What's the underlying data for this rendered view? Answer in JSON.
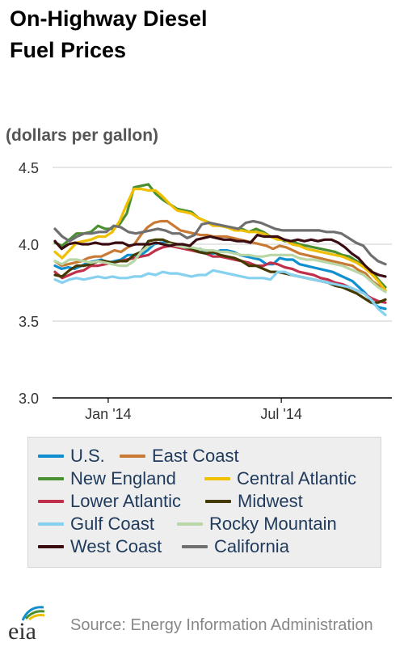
{
  "title_lines": [
    "On-Highway Diesel",
    "Fuel Prices"
  ],
  "units": "(dollars per gallon)",
  "source": "Source: Energy Information Administration",
  "logo_text": "eia",
  "chart_data": {
    "type": "line",
    "ylim": [
      3.0,
      4.5
    ],
    "y_ticks": [
      3.0,
      3.5,
      4.0,
      4.5
    ],
    "y_tick_labels": [
      "3.0",
      "3.5",
      "4.0",
      "4.5"
    ],
    "x_tick_labels": [
      "Jan '14",
      "Jul '14"
    ],
    "x_tick_index": [
      8,
      34
    ],
    "grid": true,
    "series": [
      {
        "name": "U.S.",
        "color": "#0f8fcf",
        "values": [
          3.86,
          3.84,
          3.85,
          3.84,
          3.86,
          3.88,
          3.89,
          3.9,
          3.88,
          3.89,
          3.9,
          3.93,
          3.93,
          3.93,
          3.96,
          4.0,
          4.01,
          4.01,
          4.0,
          3.99,
          3.98,
          3.96,
          3.97,
          3.94,
          3.94,
          3.96,
          3.96,
          3.95,
          3.93,
          3.92,
          3.91,
          3.9,
          3.87,
          3.87,
          3.91,
          3.9,
          3.9,
          3.87,
          3.86,
          3.85,
          3.84,
          3.83,
          3.82,
          3.8,
          3.78,
          3.76,
          3.72,
          3.68,
          3.62,
          3.59,
          3.58
        ]
      },
      {
        "name": "East Coast",
        "color": "#c87a35",
        "values": [
          3.89,
          3.86,
          3.87,
          3.88,
          3.89,
          3.91,
          3.92,
          3.92,
          3.94,
          3.96,
          3.95,
          3.98,
          4.0,
          4.06,
          4.11,
          4.14,
          4.15,
          4.15,
          4.12,
          4.09,
          4.08,
          4.07,
          4.06,
          4.06,
          4.05,
          4.05,
          4.05,
          4.04,
          4.03,
          4.02,
          4.01,
          4.0,
          3.99,
          3.97,
          3.99,
          3.98,
          3.96,
          3.94,
          3.93,
          3.92,
          3.91,
          3.9,
          3.89,
          3.88,
          3.87,
          3.86,
          3.83,
          3.81,
          3.76,
          3.73,
          3.7
        ]
      },
      {
        "name": "New England",
        "color": "#4b8f33",
        "values": [
          4.01,
          3.99,
          4.03,
          4.07,
          4.07,
          4.08,
          4.12,
          4.1,
          4.1,
          4.13,
          4.2,
          4.37,
          4.38,
          4.39,
          4.33,
          4.29,
          4.26,
          4.23,
          4.22,
          4.21,
          4.17,
          4.15,
          4.13,
          4.12,
          4.11,
          4.1,
          4.1,
          4.08,
          4.1,
          4.08,
          4.05,
          4.04,
          4.02,
          4.02,
          4.0,
          3.99,
          3.98,
          3.97,
          3.96,
          3.95,
          3.93,
          3.92,
          3.89,
          3.86,
          3.83,
          3.77,
          3.72
        ]
      },
      {
        "name": "Central Atlantic",
        "color": "#f0c000",
        "values": [
          3.95,
          3.91,
          3.96,
          4.01,
          4.02,
          4.03,
          4.05,
          4.05,
          4.08,
          4.15,
          4.26,
          4.36,
          4.36,
          4.35,
          4.35,
          4.31,
          4.26,
          4.22,
          4.21,
          4.2,
          4.17,
          4.15,
          4.12,
          4.12,
          4.11,
          4.09,
          4.09,
          4.08,
          4.08,
          4.07,
          4.05,
          4.03,
          4.03,
          4.0,
          3.99,
          3.97,
          3.96,
          3.95,
          3.94,
          3.93,
          3.92,
          3.9,
          3.88,
          3.85,
          3.81,
          3.76,
          3.7
        ]
      },
      {
        "name": "Lower Atlantic",
        "color": "#c0304a",
        "values": [
          3.82,
          3.78,
          3.8,
          3.82,
          3.83,
          3.86,
          3.86,
          3.87,
          3.88,
          3.89,
          3.9,
          3.91,
          3.92,
          3.93,
          3.96,
          3.98,
          3.99,
          3.98,
          3.97,
          3.96,
          3.95,
          3.94,
          3.92,
          3.92,
          3.91,
          3.9,
          3.89,
          3.88,
          3.86,
          3.86,
          3.88,
          3.87,
          3.85,
          3.84,
          3.82,
          3.81,
          3.8,
          3.78,
          3.77,
          3.75,
          3.74,
          3.72,
          3.7,
          3.68,
          3.65,
          3.63,
          3.62
        ]
      },
      {
        "name": "Midwest",
        "color": "#443a00",
        "values": [
          3.8,
          3.79,
          3.83,
          3.86,
          3.86,
          3.87,
          3.89,
          3.89,
          3.88,
          3.89,
          3.89,
          3.93,
          3.95,
          4.02,
          4.03,
          4.03,
          4.01,
          4.0,
          3.98,
          3.97,
          3.95,
          3.94,
          3.95,
          3.93,
          3.92,
          3.91,
          3.89,
          3.86,
          3.86,
          3.84,
          3.82,
          3.82,
          3.81,
          3.8,
          3.79,
          3.78,
          3.77,
          3.76,
          3.75,
          3.73,
          3.72,
          3.7,
          3.68,
          3.65,
          3.62,
          3.62,
          3.64
        ]
      },
      {
        "name": "Gulf Coast",
        "color": "#86d1f0",
        "values": [
          3.77,
          3.75,
          3.77,
          3.78,
          3.77,
          3.78,
          3.79,
          3.78,
          3.79,
          3.78,
          3.78,
          3.79,
          3.79,
          3.81,
          3.8,
          3.82,
          3.81,
          3.81,
          3.8,
          3.79,
          3.8,
          3.8,
          3.83,
          3.82,
          3.81,
          3.8,
          3.79,
          3.78,
          3.78,
          3.78,
          3.77,
          3.82,
          3.82,
          3.8,
          3.79,
          3.78,
          3.77,
          3.76,
          3.75,
          3.74,
          3.73,
          3.72,
          3.7,
          3.68,
          3.64,
          3.58,
          3.54
        ]
      },
      {
        "name": "Rocky Mountain",
        "color": "#b9d7a6",
        "values": [
          3.89,
          3.87,
          3.9,
          3.9,
          3.89,
          3.88,
          3.89,
          3.88,
          3.87,
          3.86,
          3.86,
          3.89,
          3.95,
          3.99,
          4.01,
          4.0,
          4.0,
          3.99,
          3.98,
          3.98,
          3.97,
          3.96,
          3.96,
          3.95,
          3.95,
          3.94,
          3.93,
          3.93,
          3.92,
          3.92,
          3.93,
          3.93,
          3.93,
          3.93,
          3.91,
          3.9,
          3.9,
          3.89,
          3.88,
          3.87,
          3.86,
          3.84,
          3.82,
          3.8,
          3.76,
          3.72,
          3.69
        ]
      },
      {
        "name": "West Coast",
        "color": "#3a0c12",
        "values": [
          4.02,
          3.97,
          4.0,
          4.01,
          4.0,
          4.0,
          4.01,
          4.0,
          4.0,
          4.01,
          4.01,
          3.99,
          4.0,
          4.0,
          4.0,
          4.01,
          4.0,
          3.99,
          4.0,
          4.0,
          3.99,
          4.03,
          4.04,
          4.05,
          4.04,
          4.03,
          4.03,
          4.02,
          4.02,
          4.01,
          4.06,
          4.05,
          4.05,
          4.05,
          4.03,
          4.02,
          4.03,
          4.02,
          4.03,
          4.02,
          4.03,
          4.03,
          4.01,
          3.98,
          3.94,
          3.91,
          3.86,
          3.82,
          3.8,
          3.79
        ]
      },
      {
        "name": "California",
        "color": "#6f6f6f",
        "values": [
          4.1,
          4.05,
          4.02,
          4.05,
          4.07,
          4.07,
          4.08,
          4.08,
          4.12,
          4.11,
          4.08,
          4.07,
          4.08,
          4.09,
          4.1,
          4.09,
          4.07,
          4.07,
          4.04,
          4.06,
          4.13,
          4.14,
          4.13,
          4.12,
          4.11,
          4.1,
          4.14,
          4.15,
          4.14,
          4.12,
          4.1,
          4.09,
          4.09,
          4.09,
          4.09,
          4.09,
          4.09,
          4.08,
          4.08,
          4.07,
          4.04,
          4.01,
          3.99,
          3.93,
          3.89,
          3.87
        ]
      }
    ]
  },
  "legend": [
    {
      "label": "U.S.",
      "color": "#0f8fcf"
    },
    {
      "label": "East Coast",
      "color": "#c87a35"
    },
    {
      "label": "New England",
      "color": "#4b8f33"
    },
    {
      "label": "Central Atlantic",
      "color": "#f0c000"
    },
    {
      "label": "Lower Atlantic",
      "color": "#c0304a"
    },
    {
      "label": "Midwest",
      "color": "#443a00"
    },
    {
      "label": "Gulf Coast",
      "color": "#86d1f0"
    },
    {
      "label": "Rocky Mountain",
      "color": "#b9d7a6"
    },
    {
      "label": "West Coast",
      "color": "#3a0c12"
    },
    {
      "label": "California",
      "color": "#6f6f6f"
    }
  ]
}
